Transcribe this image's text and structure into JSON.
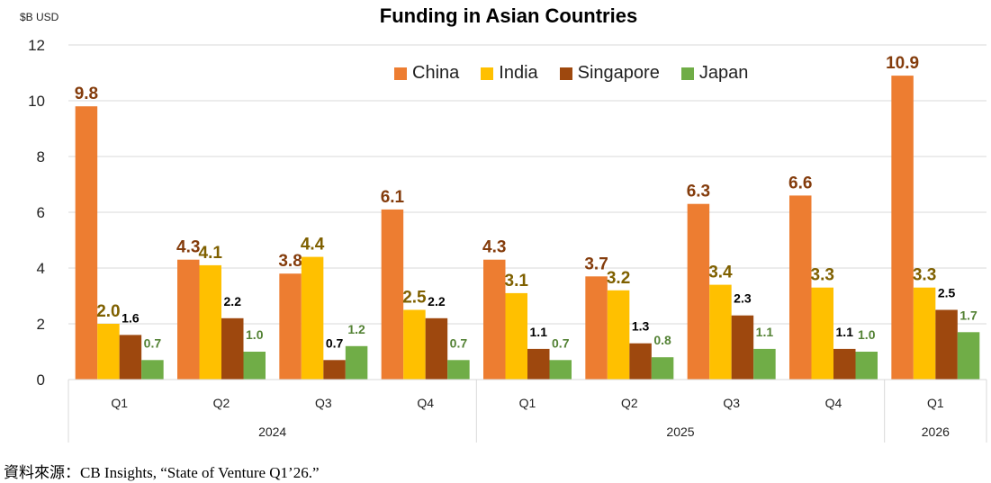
{
  "chart_data": {
    "type": "bar",
    "title": "Funding in Asian Countries",
    "ylabel": "$B USD",
    "ylim": [
      0,
      12
    ],
    "yticks": [
      0,
      2,
      4,
      6,
      8,
      10,
      12
    ],
    "grid": true,
    "legend_position": "top-right",
    "categories": [
      "Q1",
      "Q2",
      "Q3",
      "Q4",
      "Q1",
      "Q2",
      "Q3",
      "Q4",
      "Q1"
    ],
    "year_groups": [
      {
        "label": "2024",
        "span": 4
      },
      {
        "label": "2025",
        "span": 4
      },
      {
        "label": "2026",
        "span": 1
      }
    ],
    "series": [
      {
        "name": "China",
        "color": "#ED7D31",
        "label_color": "#843C0C",
        "values": [
          9.8,
          4.3,
          3.8,
          6.1,
          4.3,
          3.7,
          6.3,
          6.6,
          10.9
        ]
      },
      {
        "name": "India",
        "color": "#FFC000",
        "label_color": "#7F6000",
        "values": [
          2.0,
          4.1,
          4.4,
          2.5,
          3.1,
          3.2,
          3.4,
          3.3,
          3.3
        ]
      },
      {
        "name": "Singapore",
        "color": "#9E480E",
        "label_color": "#000000",
        "values": [
          1.6,
          2.2,
          0.7,
          2.2,
          1.1,
          1.3,
          2.3,
          1.1,
          2.5
        ]
      },
      {
        "name": "Japan",
        "color": "#70AD47",
        "label_color": "#548235",
        "values": [
          0.7,
          1.0,
          1.2,
          0.7,
          0.7,
          0.8,
          1.1,
          1.0,
          1.7
        ]
      }
    ]
  },
  "source": "資料來源：CB Insights, “State of Venture Q1’26.”"
}
